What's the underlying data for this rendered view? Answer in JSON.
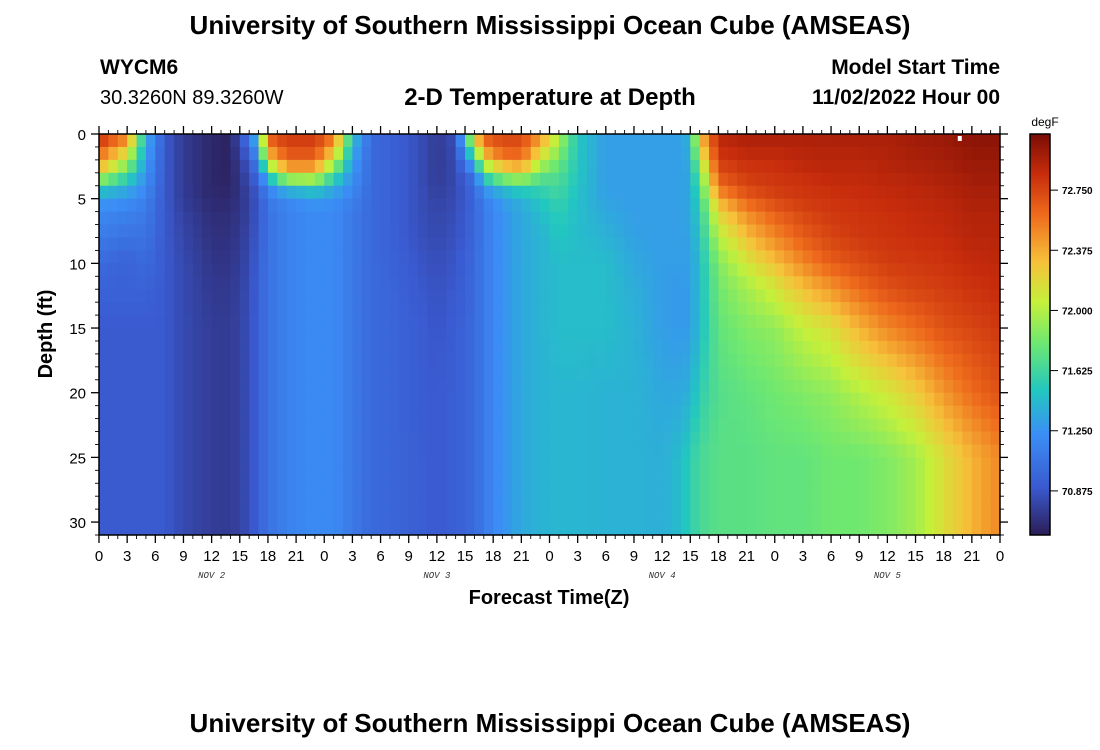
{
  "header": {
    "title": "University of Southern Mississippi Ocean Cube (AMSEAS)",
    "station_id": "WYCM6",
    "coordinates": "30.3260N  89.3260W",
    "chart_title": "2-D Temperature at Depth",
    "model_start_label": "Model Start Time",
    "model_start_value": "11/02/2022 Hour 00"
  },
  "footer": {
    "title": "University of Southern Mississippi Ocean Cube (AMSEAS)"
  },
  "chart_data": {
    "type": "heatmap",
    "title": "2-D Temperature at Depth",
    "xlabel": "Forecast Time(Z)",
    "ylabel": "Depth (ft)",
    "x_range_hours": [
      0,
      96
    ],
    "ylim": [
      0,
      31
    ],
    "x_tick_labels": [
      "0",
      "3",
      "6",
      "9",
      "12",
      "15",
      "18",
      "21",
      "0",
      "3",
      "6",
      "9",
      "12",
      "15",
      "18",
      "21",
      "0",
      "3",
      "6",
      "9",
      "12",
      "15",
      "18",
      "21",
      "0",
      "3",
      "6",
      "9",
      "12",
      "15",
      "18",
      "21",
      "0"
    ],
    "y_ticks": [
      0,
      5,
      10,
      15,
      20,
      25,
      30
    ],
    "day_labels": [
      {
        "label": "NOV 2",
        "hour": 12
      },
      {
        "label": "NOV 3",
        "hour": 36
      },
      {
        "label": "NOV 4",
        "hour": 60
      },
      {
        "label": "NOV 5",
        "hour": 84
      }
    ],
    "colorbar": {
      "unit": "degF",
      "min": 70.6,
      "max": 73.1,
      "ticks": [
        "70.875",
        "71.250",
        "71.625",
        "72.000",
        "72.375",
        "72.750"
      ]
    },
    "grid_depths_ft": [
      0,
      1,
      2,
      3,
      4,
      5,
      6,
      8,
      10,
      12,
      15,
      20,
      25,
      31
    ],
    "grid_hours": [
      0,
      1,
      2,
      3,
      4,
      5,
      6,
      7,
      8,
      9,
      10,
      11,
      12,
      13,
      14,
      15,
      16,
      17,
      18,
      19,
      20,
      21,
      22,
      23,
      24,
      25,
      26,
      27,
      28,
      29,
      30,
      31,
      32,
      33,
      34,
      35,
      36,
      37,
      38,
      39,
      40,
      41,
      42,
      43,
      44,
      45,
      46,
      47,
      48,
      49,
      50,
      51,
      52,
      53,
      54,
      55,
      56,
      57,
      58,
      59,
      60,
      61,
      62,
      63,
      64,
      65,
      66,
      67,
      68,
      69,
      70,
      71,
      72,
      73,
      74,
      75,
      76,
      77,
      78,
      79,
      80,
      81,
      82,
      83,
      84,
      85,
      86,
      87,
      88,
      89,
      90,
      91,
      92,
      93,
      94,
      95,
      96
    ],
    "temperature_profile_notes": "values in degF sampled as columns: depth rows listed top to bottom",
    "columns": [
      {
        "hour": 0,
        "temps": [
          72.9,
          72.7,
          72.5,
          72.2,
          71.6,
          71.3,
          71.2,
          71.1,
          71.0,
          70.95,
          70.9,
          70.9,
          70.9,
          70.9
        ]
      },
      {
        "hour": 3,
        "temps": [
          72.6,
          72.3,
          72.0,
          71.7,
          71.4,
          71.25,
          71.15,
          71.05,
          70.95,
          70.95,
          70.9,
          70.9,
          70.9,
          70.9
        ]
      },
      {
        "hour": 5,
        "temps": [
          71.4,
          71.35,
          71.3,
          71.25,
          71.2,
          71.15,
          71.1,
          71.05,
          71.0,
          70.95,
          70.9,
          70.9,
          70.9,
          70.9
        ]
      },
      {
        "hour": 7,
        "temps": [
          70.9,
          70.9,
          70.9,
          70.9,
          70.9,
          70.9,
          70.9,
          70.9,
          70.9,
          70.9,
          70.9,
          70.9,
          70.9,
          70.9
        ]
      },
      {
        "hour": 9,
        "temps": [
          70.75,
          70.75,
          70.75,
          70.75,
          70.75,
          70.75,
          70.78,
          70.8,
          70.82,
          70.82,
          70.82,
          70.82,
          70.82,
          70.82
        ]
      },
      {
        "hour": 12,
        "temps": [
          70.65,
          70.65,
          70.65,
          70.65,
          70.65,
          70.66,
          70.68,
          70.7,
          70.72,
          70.74,
          70.76,
          70.76,
          70.76,
          70.76
        ]
      },
      {
        "hour": 14,
        "temps": [
          70.63,
          70.63,
          70.63,
          70.63,
          70.64,
          70.66,
          70.68,
          70.7,
          70.72,
          70.74,
          70.75,
          70.75,
          70.75,
          70.75
        ]
      },
      {
        "hour": 16,
        "temps": [
          71.1,
          71.0,
          70.9,
          70.85,
          70.8,
          70.78,
          70.78,
          70.8,
          70.82,
          70.83,
          70.84,
          70.84,
          70.84,
          70.84
        ]
      },
      {
        "hour": 17,
        "temps": [
          71.6,
          71.4,
          71.2,
          71.05,
          70.95,
          70.9,
          70.9,
          70.92,
          70.95,
          70.95,
          70.95,
          70.95,
          70.95,
          70.95
        ]
      },
      {
        "hour": 18,
        "temps": [
          72.7,
          72.5,
          72.2,
          71.6,
          71.2,
          71.1,
          71.05,
          71.05,
          71.05,
          71.05,
          71.05,
          71.05,
          71.05,
          71.05
        ]
      },
      {
        "hour": 20,
        "temps": [
          72.8,
          72.75,
          72.6,
          72.3,
          71.5,
          71.2,
          71.15,
          71.15,
          71.15,
          71.15,
          71.15,
          71.15,
          71.15,
          71.15
        ]
      },
      {
        "hour": 23,
        "temps": [
          72.8,
          72.75,
          72.6,
          72.3,
          71.6,
          71.3,
          71.2,
          71.2,
          71.2,
          71.2,
          71.2,
          71.2,
          71.2,
          71.2
        ]
      },
      {
        "hour": 25,
        "temps": [
          72.6,
          72.4,
          72.1,
          71.7,
          71.4,
          71.25,
          71.2,
          71.2,
          71.2,
          71.2,
          71.2,
          71.2,
          71.2,
          71.2
        ]
      },
      {
        "hour": 27,
        "temps": [
          71.5,
          71.4,
          71.3,
          71.25,
          71.2,
          71.15,
          71.1,
          71.1,
          71.1,
          71.1,
          71.1,
          71.1,
          71.1,
          71.1
        ]
      },
      {
        "hour": 29,
        "temps": [
          71.0,
          71.0,
          71.0,
          71.0,
          71.0,
          71.0,
          71.0,
          71.0,
          71.0,
          71.0,
          71.0,
          71.0,
          71.0,
          71.0
        ]
      },
      {
        "hour": 31,
        "temps": [
          70.95,
          70.95,
          70.95,
          70.95,
          70.95,
          70.95,
          70.95,
          70.95,
          70.96,
          70.97,
          70.98,
          70.98,
          70.98,
          70.98
        ]
      },
      {
        "hour": 34,
        "temps": [
          70.85,
          70.85,
          70.85,
          70.85,
          70.85,
          70.85,
          70.85,
          70.86,
          70.88,
          70.9,
          70.92,
          70.92,
          70.93,
          70.93
        ]
      },
      {
        "hour": 36,
        "temps": [
          70.75,
          70.75,
          70.75,
          70.75,
          70.76,
          70.78,
          70.8,
          70.82,
          70.84,
          70.86,
          70.88,
          70.9,
          70.9,
          70.9
        ]
      },
      {
        "hour": 38,
        "temps": [
          70.85,
          70.83,
          70.82,
          70.82,
          70.82,
          70.83,
          70.84,
          70.86,
          70.88,
          70.9,
          70.92,
          70.93,
          70.93,
          70.93
        ]
      },
      {
        "hour": 40,
        "temps": [
          72.3,
          71.9,
          71.5,
          71.1,
          71.0,
          70.98,
          70.97,
          70.98,
          71.0,
          71.0,
          71.0,
          71.0,
          71.0,
          71.0
        ]
      },
      {
        "hour": 41,
        "temps": [
          72.7,
          72.5,
          72.2,
          71.7,
          71.3,
          71.15,
          71.1,
          71.1,
          71.1,
          71.1,
          71.1,
          71.1,
          71.1,
          71.1
        ]
      },
      {
        "hour": 43,
        "temps": [
          72.75,
          72.7,
          72.5,
          72.1,
          71.5,
          71.3,
          71.25,
          71.25,
          71.25,
          71.25,
          71.25,
          71.25,
          71.25,
          71.25
        ]
      },
      {
        "hour": 45,
        "temps": [
          72.75,
          72.7,
          72.55,
          72.2,
          71.6,
          71.4,
          71.35,
          71.35,
          71.35,
          71.35,
          71.35,
          71.35,
          71.35,
          71.35
        ]
      },
      {
        "hour": 47,
        "temps": [
          72.5,
          72.3,
          72.1,
          71.8,
          71.6,
          71.5,
          71.45,
          71.4,
          71.4,
          71.4,
          71.4,
          71.4,
          71.4,
          71.4
        ]
      },
      {
        "hour": 49,
        "temps": [
          72.0,
          71.9,
          71.8,
          71.7,
          71.65,
          71.6,
          71.55,
          71.5,
          71.45,
          71.45,
          71.45,
          71.42,
          71.42,
          71.42
        ]
      },
      {
        "hour": 51,
        "temps": [
          71.5,
          71.5,
          71.5,
          71.5,
          71.48,
          71.46,
          71.45,
          71.45,
          71.45,
          71.45,
          71.45,
          71.42,
          71.42,
          71.42
        ]
      },
      {
        "hour": 54,
        "temps": [
          71.3,
          71.3,
          71.3,
          71.3,
          71.3,
          71.32,
          71.35,
          71.4,
          71.45,
          71.45,
          71.45,
          71.4,
          71.4,
          71.4
        ]
      },
      {
        "hour": 57,
        "temps": [
          71.3,
          71.3,
          71.3,
          71.3,
          71.3,
          71.3,
          71.3,
          71.32,
          71.35,
          71.38,
          71.4,
          71.4,
          71.4,
          71.4
        ]
      },
      {
        "hour": 60,
        "temps": [
          71.3,
          71.3,
          71.3,
          71.3,
          71.3,
          71.3,
          71.3,
          71.3,
          71.3,
          71.3,
          71.3,
          71.35,
          71.38,
          71.38
        ]
      },
      {
        "hour": 62,
        "temps": [
          71.3,
          71.3,
          71.3,
          71.3,
          71.3,
          71.3,
          71.3,
          71.3,
          71.3,
          71.28,
          71.28,
          71.35,
          71.45,
          71.45
        ]
      },
      {
        "hour": 63,
        "temps": [
          71.45,
          71.4,
          71.38,
          71.35,
          71.35,
          71.35,
          71.35,
          71.33,
          71.3,
          71.3,
          71.3,
          71.4,
          71.55,
          71.55
        ]
      },
      {
        "hour": 64,
        "temps": [
          72.3,
          72.2,
          72.0,
          71.8,
          71.7,
          71.6,
          71.55,
          71.5,
          71.45,
          71.45,
          71.45,
          71.55,
          71.65,
          71.65
        ]
      },
      {
        "hour": 66,
        "temps": [
          72.9,
          72.85,
          72.8,
          72.7,
          72.6,
          72.4,
          72.2,
          72.0,
          71.85,
          71.8,
          71.75,
          71.7,
          71.72,
          71.72
        ]
      },
      {
        "hour": 69,
        "temps": [
          72.95,
          72.9,
          72.85,
          72.8,
          72.75,
          72.65,
          72.5,
          72.3,
          72.1,
          71.95,
          71.85,
          71.75,
          71.72,
          71.72
        ]
      },
      {
        "hour": 72,
        "temps": [
          72.95,
          72.9,
          72.85,
          72.82,
          72.8,
          72.75,
          72.65,
          72.5,
          72.3,
          72.1,
          71.9,
          71.8,
          71.75,
          71.75
        ]
      },
      {
        "hour": 75,
        "temps": [
          72.95,
          72.9,
          72.9,
          72.85,
          72.82,
          72.8,
          72.75,
          72.65,
          72.5,
          72.3,
          72.05,
          71.85,
          71.75,
          71.75
        ]
      },
      {
        "hour": 78,
        "temps": [
          72.95,
          72.92,
          72.9,
          72.88,
          72.85,
          72.82,
          72.8,
          72.75,
          72.65,
          72.45,
          72.15,
          71.9,
          71.8,
          71.8
        ]
      },
      {
        "hour": 81,
        "temps": [
          72.95,
          72.92,
          72.9,
          72.88,
          72.86,
          72.84,
          72.82,
          72.8,
          72.72,
          72.6,
          72.35,
          72.0,
          71.8,
          71.8
        ]
      },
      {
        "hour": 84,
        "temps": [
          72.95,
          72.93,
          72.92,
          72.9,
          72.88,
          72.86,
          72.84,
          72.82,
          72.78,
          72.7,
          72.5,
          72.1,
          71.85,
          71.85
        ]
      },
      {
        "hour": 87,
        "temps": [
          72.98,
          72.96,
          72.94,
          72.92,
          72.9,
          72.88,
          72.86,
          72.84,
          72.8,
          72.75,
          72.6,
          72.25,
          71.95,
          71.95
        ]
      },
      {
        "hour": 90,
        "temps": [
          73.0,
          72.98,
          72.96,
          72.94,
          72.92,
          72.9,
          72.88,
          72.86,
          72.82,
          72.78,
          72.7,
          72.45,
          72.15,
          72.15
        ]
      },
      {
        "hour": 93,
        "temps": [
          73.05,
          73.02,
          73.0,
          72.98,
          72.96,
          72.94,
          72.92,
          72.9,
          72.86,
          72.82,
          72.75,
          72.6,
          72.35,
          72.35
        ]
      },
      {
        "hour": 96,
        "temps": [
          73.05,
          73.03,
          73.0,
          72.98,
          72.96,
          72.94,
          72.92,
          72.9,
          72.88,
          72.85,
          72.8,
          72.7,
          72.5,
          72.5
        ]
      }
    ]
  }
}
